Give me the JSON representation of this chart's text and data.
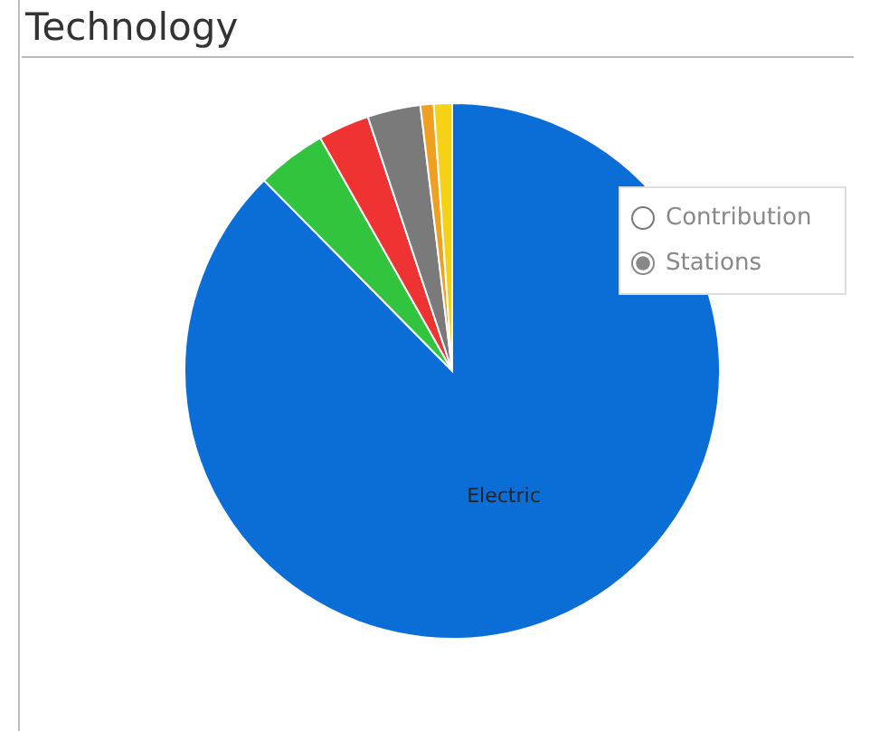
{
  "chart_data": {
    "type": "pie",
    "title": "Technology",
    "categories": [
      "Electric",
      null,
      null,
      null,
      null,
      null
    ],
    "values": [
      87.6,
      4.2,
      3.1,
      3.2,
      0.8,
      1.1
    ],
    "colors": [
      "#0a6ed6",
      "#33c43f",
      "#ef3333",
      "#7a7a7a",
      "#f0a020",
      "#f5d215"
    ],
    "annotations": [
      "Contribution",
      "Stations"
    ]
  }
}
